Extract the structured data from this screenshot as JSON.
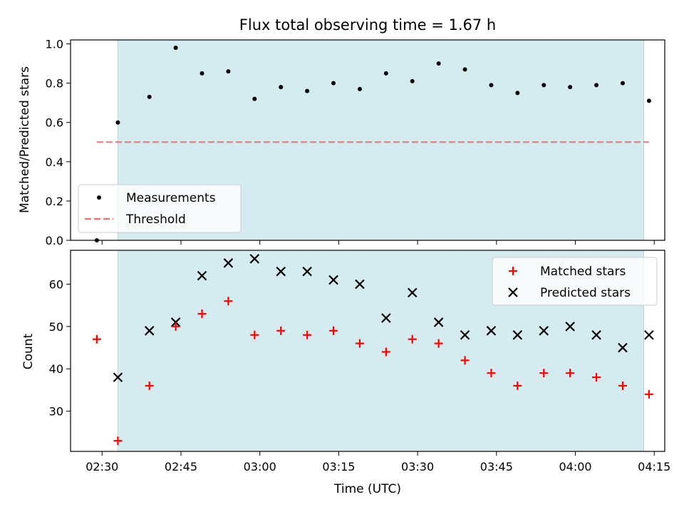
{
  "chart_data": [
    {
      "type": "scatter",
      "title": "Flux total observing time = 1.67 h",
      "xlabel": "",
      "ylabel": "Matched/Predicted stars",
      "ylim": [
        0.0,
        1.02
      ],
      "yticks": [
        "0.0",
        "0.2",
        "0.4",
        "0.6",
        "0.8",
        "1.0"
      ],
      "shaded_span": [
        "02:33",
        "04:13"
      ],
      "shade_color": "#d4ebf0",
      "legend_position": "lower-left",
      "series": [
        {
          "name": "Measurements",
          "kind": "point",
          "color": "#000000",
          "x": [
            "02:29",
            "02:33",
            "02:39",
            "02:44",
            "02:49",
            "02:54",
            "02:59",
            "03:04",
            "03:09",
            "03:14",
            "03:19",
            "03:24",
            "03:29",
            "03:34",
            "03:39",
            "03:44",
            "03:49",
            "03:54",
            "03:59",
            "04:04",
            "04:09",
            "04:14"
          ],
          "values": [
            0.0,
            0.6,
            0.73,
            0.98,
            0.85,
            0.86,
            0.72,
            0.78,
            0.76,
            0.8,
            0.77,
            0.85,
            0.81,
            0.9,
            0.87,
            0.79,
            0.75,
            0.79,
            0.78,
            0.79,
            0.8,
            0.71
          ]
        },
        {
          "name": "Threshold",
          "kind": "dashed-line",
          "color": "#f07070",
          "x": [
            "02:29",
            "04:14"
          ],
          "values": [
            0.5,
            0.5
          ]
        }
      ]
    },
    {
      "type": "scatter",
      "xlabel": "Time (UTC)",
      "ylabel": "Count",
      "ylim": [
        20.5,
        68
      ],
      "yticks": [
        "30",
        "40",
        "50",
        "60"
      ],
      "xlim": [
        "02:24",
        "04:17"
      ],
      "xticks": [
        "02:30",
        "02:45",
        "03:00",
        "03:15",
        "03:30",
        "03:45",
        "04:00",
        "04:15"
      ],
      "shaded_span": [
        "02:33",
        "04:13"
      ],
      "shade_color": "#d4ebf0",
      "legend_position": "top-right",
      "series": [
        {
          "name": "Matched stars",
          "marker": "plus",
          "color": "#ff0000",
          "x": [
            "02:29",
            "02:33",
            "02:39",
            "02:44",
            "02:49",
            "02:54",
            "02:59",
            "03:04",
            "03:09",
            "03:14",
            "03:19",
            "03:24",
            "03:29",
            "03:34",
            "03:39",
            "03:44",
            "03:49",
            "03:54",
            "03:59",
            "04:04",
            "04:09",
            "04:14"
          ],
          "values": [
            47,
            23,
            36,
            50,
            53,
            56,
            48,
            49,
            48,
            49,
            46,
            44,
            47,
            46,
            42,
            39,
            36,
            39,
            39,
            38,
            36,
            34
          ]
        },
        {
          "name": "Predicted stars",
          "marker": "x",
          "color": "#000000",
          "x": [
            "02:33",
            "02:39",
            "02:44",
            "02:49",
            "02:54",
            "02:59",
            "03:04",
            "03:09",
            "03:14",
            "03:19",
            "03:24",
            "03:29",
            "03:34",
            "03:39",
            "03:44",
            "03:49",
            "03:54",
            "03:59",
            "04:04",
            "04:09",
            "04:14"
          ],
          "values": [
            38,
            49,
            51,
            62,
            65,
            66,
            63,
            63,
            61,
            60,
            52,
            58,
            51,
            48,
            49,
            48,
            49,
            50,
            48,
            45,
            48
          ]
        }
      ]
    }
  ]
}
